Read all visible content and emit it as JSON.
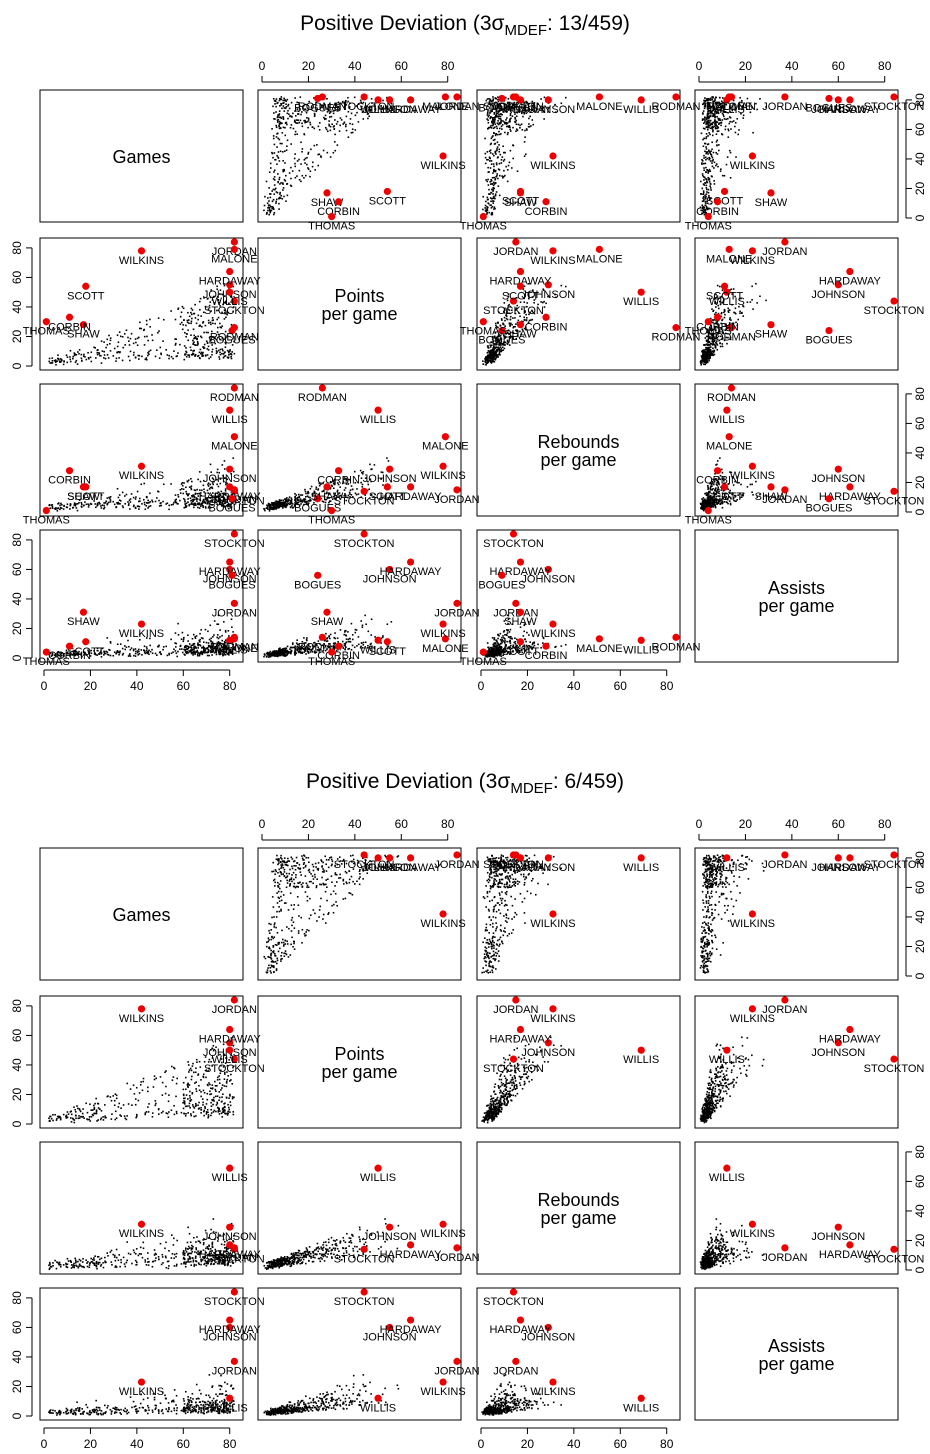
{
  "chart_data": [
    {
      "type": "scatter",
      "title": "Positive Deviation (3σMDEF: 13/459)",
      "title_main": "Positive Deviation (3σ",
      "title_sub": "MDEF",
      "title_tail": ": 13/459)",
      "variables": [
        {
          "line1": "Games",
          "line2": ""
        },
        {
          "line1": "Points",
          "line2": "per game"
        },
        {
          "line1": "Rebounds",
          "line2": "per game"
        },
        {
          "line1": "Assists",
          "line2": "per game"
        }
      ],
      "axis_range": [
        0,
        84
      ],
      "ticks": [
        "0",
        "20",
        "40",
        "60",
        "80"
      ],
      "tick_values": [
        0,
        20,
        40,
        60,
        80
      ],
      "background_points": 446,
      "background_color": "#000000",
      "highlight_color": "#ee0000",
      "outliers": [
        {
          "name": "JORDAN",
          "g": 82,
          "p": 84,
          "r": 15,
          "a": 37
        },
        {
          "name": "MALONE",
          "g": 82,
          "p": 79,
          "r": 51,
          "a": 13
        },
        {
          "name": "WILKINS",
          "g": 42,
          "p": 78,
          "r": 31,
          "a": 23
        },
        {
          "name": "STOCKTON",
          "g": 82,
          "p": 44,
          "r": 14,
          "a": 84
        },
        {
          "name": "JOHNSON",
          "g": 80,
          "p": 55,
          "r": 29,
          "a": 60
        },
        {
          "name": "HARDAWAY",
          "g": 80,
          "p": 64,
          "r": 17,
          "a": 65
        },
        {
          "name": "BOGUES",
          "g": 81,
          "p": 24,
          "r": 9,
          "a": 56
        },
        {
          "name": "WILLIS",
          "g": 80,
          "p": 50,
          "r": 69,
          "a": 12
        },
        {
          "name": "RODMAN",
          "g": 82,
          "p": 26,
          "r": 84,
          "a": 14
        },
        {
          "name": "SCOTT",
          "g": 18,
          "p": 54,
          "r": 17,
          "a": 11
        },
        {
          "name": "SHAW",
          "g": 17,
          "p": 28,
          "r": 17,
          "a": 31
        },
        {
          "name": "CORBIN",
          "g": 11,
          "p": 33,
          "r": 28,
          "a": 8
        },
        {
          "name": "THOMAS",
          "g": 1,
          "p": 30,
          "r": 1,
          "a": 4
        }
      ]
    },
    {
      "type": "scatter",
      "title": "Positive Deviation (3σMDEF: 6/459)",
      "title_main": "Positive Deviation (3σ",
      "title_sub": "MDEF",
      "title_tail": ": 6/459)",
      "variables": [
        {
          "line1": "Games",
          "line2": ""
        },
        {
          "line1": "Points",
          "line2": "per game"
        },
        {
          "line1": "Rebounds",
          "line2": "per game"
        },
        {
          "line1": "Assists",
          "line2": "per game"
        }
      ],
      "axis_range": [
        0,
        84
      ],
      "ticks": [
        "0",
        "20",
        "40",
        "60",
        "80"
      ],
      "tick_values": [
        0,
        20,
        40,
        60,
        80
      ],
      "background_points": 453,
      "background_color": "#000000",
      "highlight_color": "#ee0000",
      "outliers": [
        {
          "name": "JORDAN",
          "g": 82,
          "p": 84,
          "r": 15,
          "a": 37
        },
        {
          "name": "WILKINS",
          "g": 42,
          "p": 78,
          "r": 31,
          "a": 23
        },
        {
          "name": "STOCKTON",
          "g": 82,
          "p": 44,
          "r": 14,
          "a": 84
        },
        {
          "name": "JOHNSON",
          "g": 80,
          "p": 55,
          "r": 29,
          "a": 60
        },
        {
          "name": "HARDAWAY",
          "g": 80,
          "p": 64,
          "r": 17,
          "a": 65
        },
        {
          "name": "WILLIS",
          "g": 80,
          "p": 50,
          "r": 69,
          "a": 12
        }
      ]
    }
  ]
}
